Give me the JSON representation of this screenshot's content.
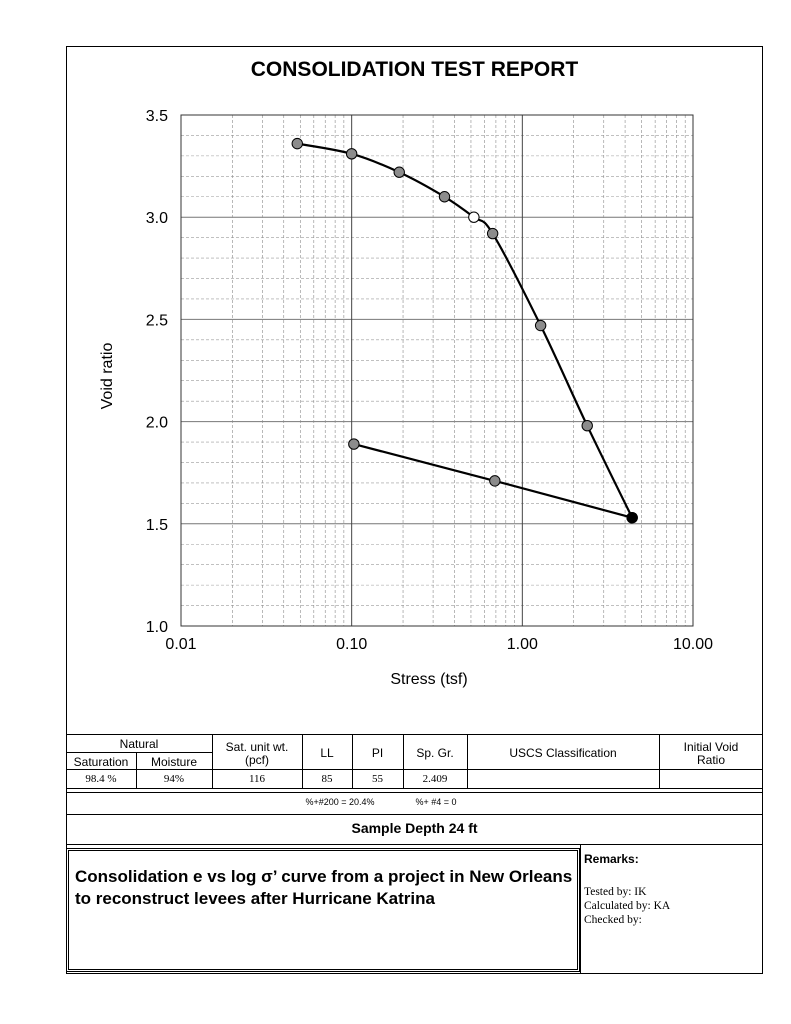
{
  "report": {
    "title": "CONSOLIDATION TEST REPORT"
  },
  "chart_data": {
    "type": "line",
    "xlabel": "Stress (tsf)",
    "ylabel": "Void ratio",
    "x_scale": "log",
    "xlim": [
      0.01,
      10.0
    ],
    "ylim": [
      1.0,
      3.5
    ],
    "grid": true,
    "x_ticks": [
      0.01,
      0.1,
      1.0,
      10.0
    ],
    "x_tick_labels": [
      "0.01",
      "0.10",
      "1.00",
      "10.00"
    ],
    "y_ticks": [
      1.0,
      1.5,
      2.0,
      2.5,
      3.0,
      3.5
    ],
    "y_tick_labels": [
      "1.0",
      "1.5",
      "2.0",
      "2.5",
      "3.0",
      "3.5"
    ],
    "series": [
      {
        "points": [
          {
            "x": 0.048,
            "y": 3.36,
            "marker": "gray"
          },
          {
            "x": 0.1,
            "y": 3.31,
            "marker": "gray"
          },
          {
            "x": 0.19,
            "y": 3.22,
            "marker": "gray"
          },
          {
            "x": 0.35,
            "y": 3.1,
            "marker": "gray"
          },
          {
            "x": 0.52,
            "y": 3.0,
            "marker": "open"
          },
          {
            "x": 0.67,
            "y": 2.92,
            "marker": "gray"
          },
          {
            "x": 1.28,
            "y": 2.47,
            "marker": "gray"
          },
          {
            "x": 2.4,
            "y": 1.98,
            "marker": "gray"
          },
          {
            "x": 4.4,
            "y": 1.53,
            "marker": "black"
          }
        ],
        "smooth": true
      },
      {
        "points": [
          {
            "x": 4.4,
            "y": 1.53,
            "marker": "black"
          },
          {
            "x": 0.69,
            "y": 1.71,
            "marker": "gray"
          },
          {
            "x": 0.103,
            "y": 1.89,
            "marker": "gray"
          }
        ],
        "smooth": false
      }
    ]
  },
  "table": {
    "natural": "Natural",
    "saturation_label": "Saturation",
    "moisture_label": "Moisture",
    "sat_unit_wt_label_1": "Sat. unit wt.",
    "sat_unit_wt_label_2": "(pcf)",
    "ll_label": "LL",
    "pi_label": "PI",
    "sp_gr_label": "Sp. Gr.",
    "uscs_label": "USCS Classification",
    "initial_void_label_1": "Initial Void",
    "initial_void_label_2": "Ratio",
    "saturation": "98.4 %",
    "moisture": "94%",
    "sat_unit_wt": "116",
    "ll": "85",
    "pi": "55",
    "sp_gr": "2.409",
    "uscs": "",
    "initial_void": ""
  },
  "gradation": {
    "pct_200": "%+#200 = 20.4%",
    "pct_4": "%+ #4 = 0"
  },
  "sample_depth": "Sample Depth 24 ft",
  "description": "Consolidation e vs log σ’ curve from a project in New Orleans to reconstruct levees after Hurricane Katrina",
  "remarks": {
    "title": "Remarks:",
    "tested_by": "Tested by: IK",
    "calculated_by": "Calculated by: KA",
    "checked_by": "Checked by:"
  }
}
